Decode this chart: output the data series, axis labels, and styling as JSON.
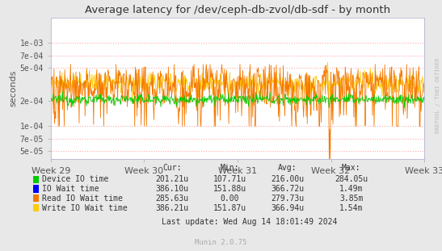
{
  "title": "Average latency for /dev/ceph-db-zvol/db-sdf - by month",
  "ylabel": "seconds",
  "xlabel_ticks": [
    "Week 29",
    "Week 30",
    "Week 31",
    "Week 32",
    "Week 33"
  ],
  "background_color": "#e8e8e8",
  "plot_bg_color": "#ffffff",
  "grid_color": "#ffaaaa",
  "watermark": "RRDTOOL / TOBI OETIKER",
  "munin_version": "Munin 2.0.75",
  "last_update": "Last update: Wed Aug 14 18:01:49 2024",
  "legend": [
    {
      "label": "Device IO time",
      "color": "#00cc00"
    },
    {
      "label": "IO Wait time",
      "color": "#0000ff"
    },
    {
      "label": "Read IO Wait time",
      "color": "#f57900"
    },
    {
      "label": "Write IO Wait time",
      "color": "#ffcc00"
    }
  ],
  "legend_stats": {
    "headers": [
      "Cur:",
      "Min:",
      "Avg:",
      "Max:"
    ],
    "rows": [
      [
        "201.21u",
        "107.71u",
        "216.00u",
        "284.05u"
      ],
      [
        "386.10u",
        "151.88u",
        "366.72u",
        "1.49m"
      ],
      [
        "285.63u",
        "0.00",
        "279.73u",
        "3.85m"
      ],
      [
        "386.21u",
        "151.87u",
        "366.94u",
        "1.54m"
      ]
    ]
  },
  "n_points": 700,
  "ylim": [
    4e-05,
    0.002
  ],
  "yticks": [
    5e-05,
    7e-05,
    0.0001,
    0.0002,
    0.0005,
    0.0007,
    0.001
  ],
  "ytick_labels": [
    "5e-05",
    "7e-05",
    "1e-04",
    "2e-04",
    "5e-04",
    "7e-04",
    "1e-03"
  ]
}
